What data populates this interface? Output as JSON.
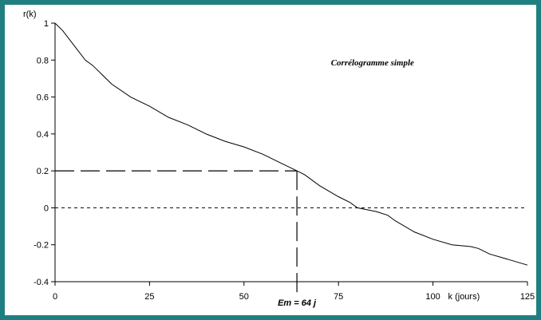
{
  "frame": {
    "border_color": "#1f7f80"
  },
  "chart_data": {
    "type": "line",
    "title": "Corrélogramme simple",
    "xlabel": "k (jours)",
    "ylabel": "r(k)",
    "xlim": [
      0,
      125
    ],
    "ylim": [
      -0.4,
      1
    ],
    "xticks": [
      0,
      25,
      50,
      75,
      100,
      125
    ],
    "xtick_labels": [
      "0",
      "25",
      "50",
      "75",
      "100",
      "125"
    ],
    "yticks": [
      1,
      0.8,
      0.6,
      0.4,
      0.2,
      0,
      -0.2,
      -0.4
    ],
    "ytick_labels": [
      "1",
      "0.8",
      "0.6",
      "0.4",
      "0.2",
      "0",
      "-0.2",
      "-0.4"
    ],
    "grid": false,
    "line_color": "#000000",
    "series": [
      {
        "x": [
          0,
          2,
          5,
          8,
          10,
          15,
          20,
          25,
          30,
          35,
          40,
          45,
          50,
          55,
          60,
          64,
          66,
          70,
          75,
          78,
          80,
          85,
          88,
          90,
          95,
          100,
          105,
          110,
          112,
          115,
          120,
          125
        ],
        "y": [
          1.0,
          0.96,
          0.88,
          0.8,
          0.77,
          0.67,
          0.6,
          0.55,
          0.49,
          0.45,
          0.4,
          0.36,
          0.33,
          0.29,
          0.24,
          0.2,
          0.18,
          0.12,
          0.06,
          0.03,
          0.0,
          -0.02,
          -0.04,
          -0.07,
          -0.13,
          -0.17,
          -0.2,
          -0.21,
          -0.22,
          -0.25,
          -0.28,
          -0.31
        ]
      }
    ],
    "reference_lines": [
      {
        "axis": "y",
        "value": 0,
        "style": "dashed"
      }
    ],
    "marker": {
      "x": 64,
      "y": 0.2,
      "style": "long-dashed"
    },
    "annotation": "Em = 64 j"
  }
}
